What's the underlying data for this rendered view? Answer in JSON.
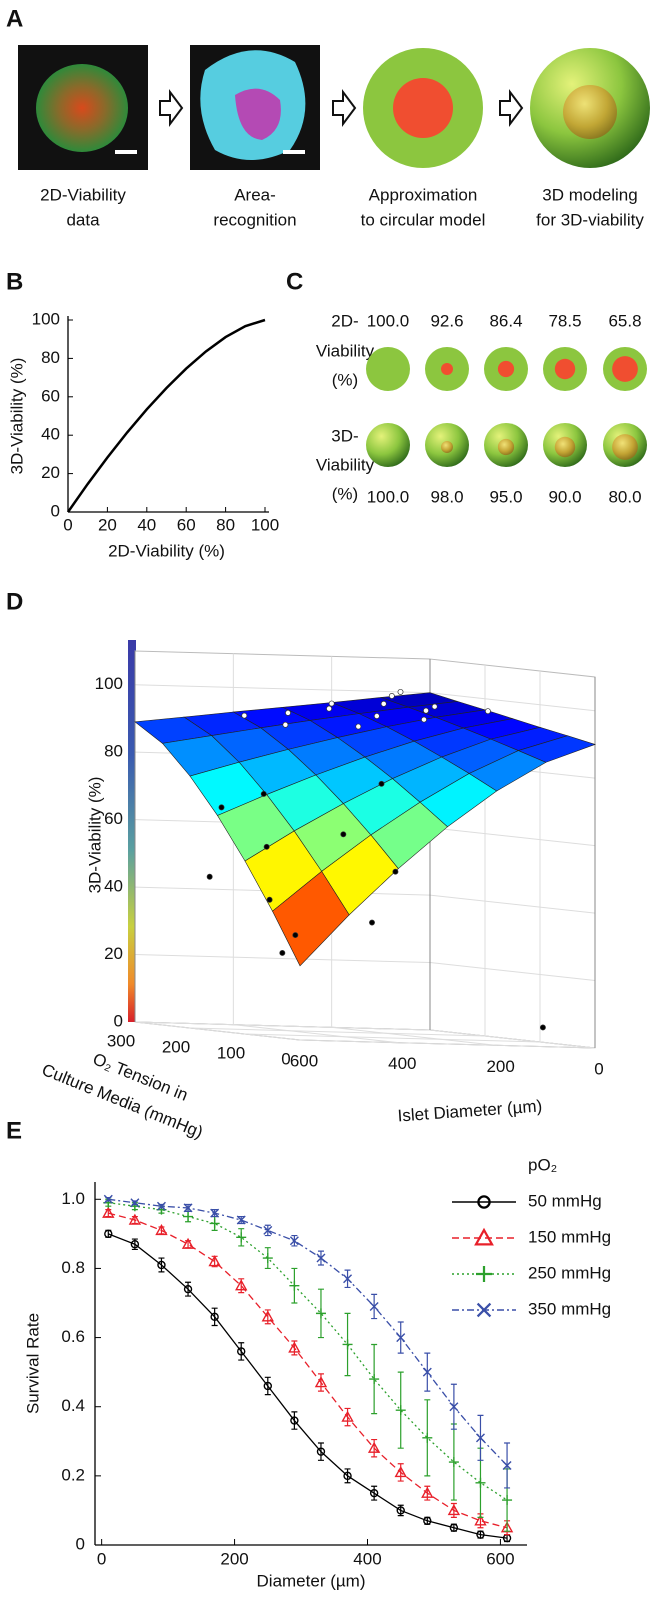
{
  "panel_labels": [
    "A",
    "B",
    "C",
    "D",
    "E"
  ],
  "panel_a": {
    "captions": [
      [
        "2D-Viability",
        "data"
      ],
      [
        "Area-",
        "recognition"
      ],
      [
        "Approximation",
        "to circular model"
      ],
      [
        "3D modeling",
        "for 3D-viability"
      ]
    ]
  },
  "panel_c": {
    "row_labels": [
      [
        "2D-",
        "Viability",
        "(%)"
      ],
      [
        "3D-",
        "Viability",
        "(%)"
      ]
    ],
    "viability_2d": [
      "100.0",
      "92.6",
      "86.4",
      "78.5",
      "65.8"
    ],
    "viability_3d": [
      "100.0",
      "98.0",
      "95.0",
      "90.0",
      "80.0"
    ]
  },
  "chart_data": [
    {
      "type": "line",
      "xlabel": "2D-Viability (%)",
      "ylabel": "3D-Viability (%)",
      "color": "#000000",
      "x": [
        0,
        10,
        20,
        30,
        40,
        50,
        60,
        70,
        80,
        90,
        100
      ],
      "values": [
        0,
        14.6,
        28.4,
        41.4,
        53.5,
        64.6,
        74.7,
        83.6,
        91.1,
        96.8,
        100
      ],
      "xlim": [
        0,
        100
      ],
      "ylim": [
        0,
        100
      ],
      "xticks": [
        0,
        20,
        40,
        60,
        80,
        100
      ],
      "yticks": [
        0,
        20,
        40,
        60,
        80,
        100
      ]
    },
    {
      "type": "surface3d",
      "zlabel": "3D-Viability (%)",
      "xlabel": "Islet Diameter (µm)",
      "ylabel": [
        "O₂ Tension in",
        "Culture Media (mmHg)"
      ],
      "colormap": "jet",
      "x": [
        0,
        100,
        200,
        300,
        400,
        500,
        600
      ],
      "y": [
        0,
        50,
        100,
        150,
        200,
        250,
        300
      ],
      "z": [
        [
          90,
          84.3,
          75.4,
          64.4,
          51.6,
          37.5,
          22
        ],
        [
          91.7,
          86.9,
          79.7,
          70.8,
          60.7,
          49.5,
          37.3
        ],
        [
          93.3,
          89.4,
          83.7,
          76.9,
          69.1,
          60.6,
          51.3
        ],
        [
          95,
          91.8,
          87.5,
          82.4,
          76.7,
          70.5,
          63.9
        ],
        [
          96.7,
          94.1,
          90.9,
          87.3,
          83.4,
          79.2,
          74.7
        ],
        [
          98.3,
          96.2,
          93.9,
          91.5,
          88.9,
          86.2,
          83.5
        ],
        [
          100,
          98.2,
          96.3,
          94.5,
          92.7,
          90.8,
          89
        ]
      ],
      "scatter": [
        {
          "color": "#ffffff",
          "diameter": [
            100,
            150,
            200,
            80,
            250,
            300,
            120,
            60,
            350,
            180,
            220,
            50,
            400,
            280
          ],
          "o2": [
            280,
            250,
            300,
            220,
            260,
            290,
            200,
            300,
            250,
            150,
            200,
            150,
            280,
            180
          ],
          "viability": [
            99,
            97,
            96,
            97,
            95,
            93,
            96,
            100,
            90,
            94,
            94,
            97,
            92,
            91
          ]
        },
        {
          "color": "#000000",
          "diameter": [
            450,
            500,
            550,
            400,
            520,
            580,
            350,
            480,
            300,
            560,
            420,
            50
          ],
          "o2": [
            200,
            150,
            100,
            100,
            80,
            50,
            50,
            250,
            120,
            200,
            30,
            50
          ],
          "viability": [
            70,
            55,
            40,
            60,
            30,
            25,
            50,
            65,
            75,
            45,
            35,
            5
          ]
        }
      ],
      "xlim": [
        0,
        600
      ],
      "ylim": [
        0,
        300
      ],
      "zlim": [
        0,
        110
      ],
      "xticks": [
        0,
        200,
        400,
        600
      ],
      "yticks": [
        0,
        100,
        200,
        300
      ],
      "zticks": [
        0,
        20,
        40,
        60,
        80,
        100
      ]
    },
    {
      "type": "errorline",
      "xlabel": "Diameter (µm)",
      "ylabel": "Survival Rate",
      "legend_title": "pO₂",
      "legend": "right",
      "x": [
        10,
        50,
        90,
        130,
        170,
        210,
        250,
        290,
        330,
        370,
        410,
        450,
        490,
        530,
        570,
        610
      ],
      "series": [
        {
          "name": "50 mmHg",
          "color": "#000000",
          "dash": "solid",
          "marker": "circle",
          "values": [
            0.9,
            0.87,
            0.81,
            0.74,
            0.66,
            0.56,
            0.46,
            0.36,
            0.27,
            0.2,
            0.15,
            0.1,
            0.07,
            0.05,
            0.03,
            0.02
          ],
          "errors": [
            0.01,
            0.015,
            0.02,
            0.02,
            0.025,
            0.025,
            0.025,
            0.025,
            0.025,
            0.02,
            0.02,
            0.015,
            0.01,
            0.01,
            0.01,
            0.01
          ]
        },
        {
          "name": "150 mmHg",
          "color": "#e8202a",
          "dash": "dashed",
          "marker": "triangle",
          "values": [
            0.96,
            0.94,
            0.91,
            0.87,
            0.82,
            0.75,
            0.66,
            0.57,
            0.47,
            0.37,
            0.28,
            0.21,
            0.15,
            0.1,
            0.07,
            0.05
          ],
          "errors": [
            0.01,
            0.01,
            0.01,
            0.01,
            0.015,
            0.02,
            0.02,
            0.02,
            0.025,
            0.025,
            0.025,
            0.025,
            0.02,
            0.02,
            0.02,
            0.02
          ]
        },
        {
          "name": "250 mmHg",
          "color": "#2ca02c",
          "dash": "dotted",
          "marker": "plus",
          "values": [
            0.99,
            0.98,
            0.97,
            0.95,
            0.93,
            0.89,
            0.83,
            0.75,
            0.67,
            0.58,
            0.48,
            0.39,
            0.31,
            0.24,
            0.18,
            0.13
          ],
          "errors": [
            0.01,
            0.01,
            0.01,
            0.015,
            0.02,
            0.025,
            0.03,
            0.05,
            0.07,
            0.09,
            0.1,
            0.11,
            0.11,
            0.11,
            0.1,
            0.09
          ]
        },
        {
          "name": "350 mmHg",
          "color": "#3a4fa8",
          "dash": "dashdot",
          "marker": "x",
          "values": [
            1.0,
            0.99,
            0.98,
            0.975,
            0.96,
            0.94,
            0.91,
            0.88,
            0.83,
            0.77,
            0.69,
            0.6,
            0.5,
            0.4,
            0.31,
            0.23
          ],
          "errors": [
            0.005,
            0.005,
            0.005,
            0.01,
            0.01,
            0.01,
            0.015,
            0.015,
            0.02,
            0.025,
            0.035,
            0.045,
            0.055,
            0.065,
            0.065,
            0.065
          ]
        }
      ],
      "xlim": [
        -10,
        640
      ],
      "ylim": [
        0,
        1.05
      ],
      "xticks": [
        0,
        200,
        400,
        600
      ],
      "yticks": [
        0,
        0.2,
        0.4,
        0.6,
        0.8,
        {
          "value": 1,
          "label": "1.0"
        }
      ]
    }
  ]
}
